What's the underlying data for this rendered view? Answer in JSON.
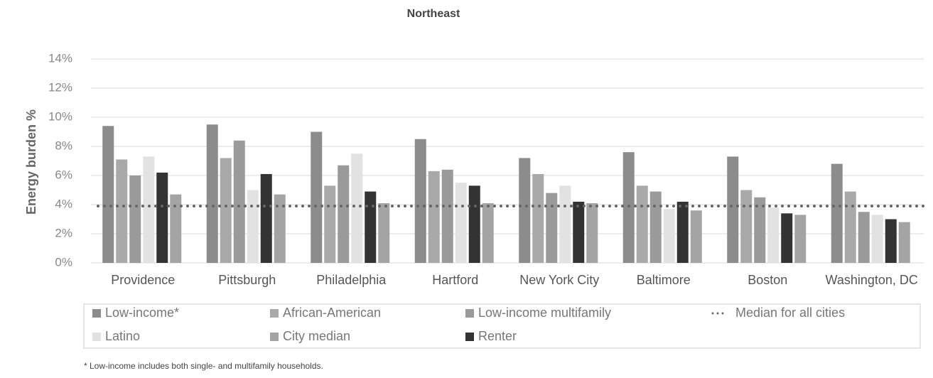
{
  "chart_data": {
    "type": "bar",
    "title": "Northeast",
    "y_label": "Energy burden %",
    "categories": [
      "Providence",
      "Pittsburgh",
      "Philadelphia",
      "Hartford",
      "New York City",
      "Baltimore",
      "Boston",
      "Washington, DC"
    ],
    "series": [
      {
        "name": "Low-income*",
        "color": "#8c8c8c",
        "values": [
          9.4,
          9.5,
          9.0,
          8.5,
          7.2,
          7.6,
          7.3,
          6.8
        ]
      },
      {
        "name": "African-American",
        "color": "#a9a9a9",
        "values": [
          7.1,
          7.2,
          5.3,
          6.3,
          6.1,
          5.3,
          5.0,
          4.9
        ]
      },
      {
        "name": "Low-income multifamily",
        "color": "#9a9a9a",
        "values": [
          6.0,
          8.4,
          6.7,
          6.4,
          4.8,
          4.9,
          4.5,
          3.5
        ]
      },
      {
        "name": "Latino",
        "color": "#e2e2e2",
        "values": [
          7.3,
          5.0,
          7.5,
          5.5,
          5.3,
          3.7,
          3.8,
          3.3
        ]
      },
      {
        "name": "Renter",
        "color": "#333333",
        "values": [
          6.2,
          6.1,
          4.9,
          5.3,
          4.2,
          4.2,
          3.4,
          3.0
        ]
      },
      {
        "name": "City median",
        "color": "#a4a4a4",
        "values": [
          4.7,
          4.7,
          4.1,
          4.1,
          4.1,
          3.6,
          3.3,
          2.8
        ]
      }
    ],
    "median": {
      "name": "Median for all cities",
      "value": 3.9,
      "color": "#666666"
    },
    "ylim": [
      0,
      14
    ],
    "yticks": [
      {
        "value": 0,
        "label": "0%"
      },
      {
        "value": 2,
        "label": "2%"
      },
      {
        "value": 4,
        "label": "4%"
      },
      {
        "value": 6,
        "label": "6%"
      },
      {
        "value": 8,
        "label": "8%"
      },
      {
        "value": 10,
        "label": "10%"
      },
      {
        "value": 12,
        "label": "12%"
      },
      {
        "value": 14,
        "label": "14%"
      }
    ],
    "grid": true,
    "note": "* Low-income includes both single- and multifamily households."
  }
}
